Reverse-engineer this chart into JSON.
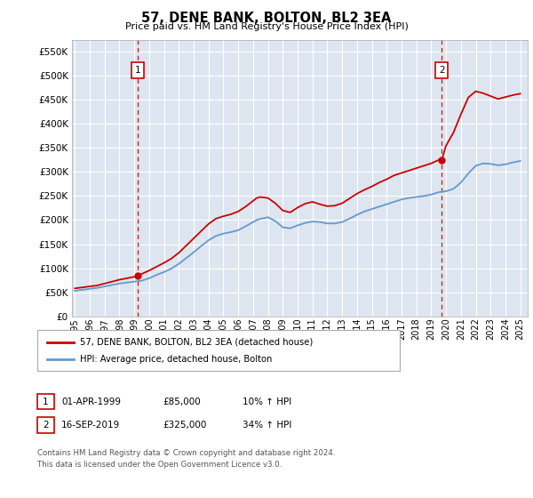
{
  "title": "57, DENE BANK, BOLTON, BL2 3EA",
  "subtitle": "Price paid vs. HM Land Registry's House Price Index (HPI)",
  "ylabel_ticks": [
    "£0",
    "£50K",
    "£100K",
    "£150K",
    "£200K",
    "£250K",
    "£300K",
    "£350K",
    "£400K",
    "£450K",
    "£500K",
    "£550K"
  ],
  "ytick_values": [
    0,
    50000,
    100000,
    150000,
    200000,
    250000,
    300000,
    350000,
    400000,
    450000,
    500000,
    550000
  ],
  "ylim": [
    0,
    575000
  ],
  "xlim_start": 1994.8,
  "xlim_end": 2025.5,
  "xtick_years": [
    1995,
    1996,
    1997,
    1998,
    1999,
    2000,
    2001,
    2002,
    2003,
    2004,
    2005,
    2006,
    2007,
    2008,
    2009,
    2010,
    2011,
    2012,
    2013,
    2014,
    2015,
    2016,
    2017,
    2018,
    2019,
    2020,
    2021,
    2022,
    2023,
    2024,
    2025
  ],
  "bg_color": "#dde5f0",
  "grid_color": "#ffffff",
  "red_line_color": "#cc0000",
  "blue_line_color": "#6699cc",
  "vline_color": "#cc0000",
  "sale1_x": 1999.25,
  "sale1_y": 85000,
  "sale2_x": 2019.71,
  "sale2_y": 325000,
  "legend_label1": "57, DENE BANK, BOLTON, BL2 3EA (detached house)",
  "legend_label2": "HPI: Average price, detached house, Bolton",
  "footnote": "Contains HM Land Registry data © Crown copyright and database right 2024.\nThis data is licensed under the Open Government Licence v3.0.",
  "hpi_data": {
    "years": [
      1995.0,
      1995.5,
      1996.0,
      1996.5,
      1997.0,
      1997.5,
      1998.0,
      1998.5,
      1999.0,
      1999.5,
      2000.0,
      2000.5,
      2001.0,
      2001.5,
      2002.0,
      2002.5,
      2003.0,
      2003.5,
      2004.0,
      2004.5,
      2005.0,
      2005.5,
      2006.0,
      2006.5,
      2007.0,
      2007.25,
      2007.5,
      2007.75,
      2008.0,
      2008.5,
      2009.0,
      2009.5,
      2010.0,
      2010.5,
      2011.0,
      2011.5,
      2012.0,
      2012.5,
      2013.0,
      2013.5,
      2014.0,
      2014.5,
      2015.0,
      2015.5,
      2016.0,
      2016.5,
      2017.0,
      2017.5,
      2018.0,
      2018.5,
      2019.0,
      2019.5,
      2020.0,
      2020.5,
      2021.0,
      2021.5,
      2022.0,
      2022.5,
      2023.0,
      2023.5,
      2024.0,
      2024.5,
      2025.0
    ],
    "values": [
      53000,
      55000,
      57000,
      59000,
      62000,
      65000,
      68000,
      70000,
      72000,
      74000,
      79000,
      86000,
      92000,
      99000,
      109000,
      121000,
      133000,
      146000,
      158000,
      167000,
      172000,
      175000,
      179000,
      187000,
      196000,
      200000,
      203000,
      204000,
      206000,
      198000,
      185000,
      183000,
      189000,
      194000,
      197000,
      196000,
      193000,
      193000,
      196000,
      203000,
      211000,
      218000,
      223000,
      228000,
      233000,
      238000,
      243000,
      246000,
      248000,
      250000,
      253000,
      258000,
      260000,
      265000,
      278000,
      297000,
      313000,
      318000,
      317000,
      314000,
      316000,
      320000,
      323000
    ]
  },
  "red_data": {
    "years": [
      1995.0,
      1995.5,
      1996.0,
      1996.5,
      1997.0,
      1997.5,
      1998.0,
      1998.5,
      1999.0,
      1999.25,
      1999.5,
      2000.0,
      2000.5,
      2001.0,
      2001.5,
      2002.0,
      2002.5,
      2003.0,
      2003.5,
      2004.0,
      2004.5,
      2005.0,
      2005.5,
      2006.0,
      2006.5,
      2007.0,
      2007.25,
      2007.5,
      2007.75,
      2008.0,
      2008.5,
      2009.0,
      2009.5,
      2010.0,
      2010.5,
      2011.0,
      2011.5,
      2012.0,
      2012.5,
      2013.0,
      2013.5,
      2014.0,
      2014.5,
      2015.0,
      2015.5,
      2016.0,
      2016.5,
      2017.0,
      2017.5,
      2018.0,
      2018.5,
      2019.0,
      2019.5,
      2019.71,
      2020.0,
      2020.5,
      2021.0,
      2021.5,
      2022.0,
      2022.5,
      2023.0,
      2023.5,
      2024.0,
      2024.5,
      2025.0
    ],
    "values": [
      58000,
      60000,
      62000,
      64000,
      68000,
      72000,
      76000,
      79000,
      82000,
      85000,
      88000,
      95000,
      103000,
      111000,
      120000,
      132000,
      147000,
      162000,
      177000,
      192000,
      203000,
      208000,
      212000,
      218000,
      228000,
      240000,
      246000,
      248000,
      247000,
      246000,
      235000,
      220000,
      216000,
      226000,
      234000,
      238000,
      233000,
      229000,
      230000,
      235000,
      245000,
      255000,
      263000,
      270000,
      278000,
      285000,
      293000,
      298000,
      303000,
      308000,
      313000,
      318000,
      325000,
      325000,
      355000,
      382000,
      420000,
      455000,
      468000,
      464000,
      458000,
      452000,
      456000,
      460000,
      463000
    ]
  }
}
